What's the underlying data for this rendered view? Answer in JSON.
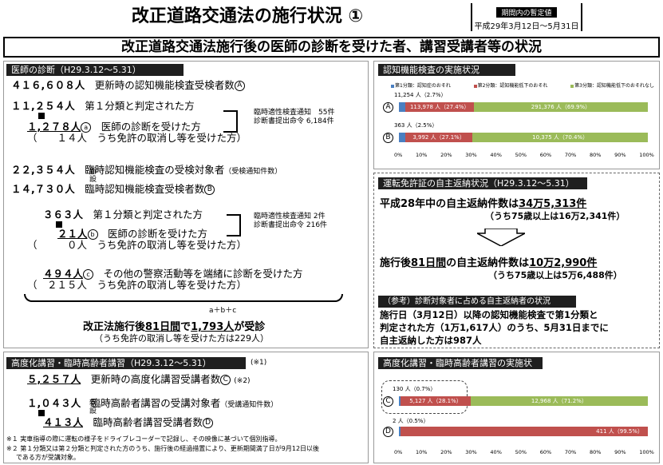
{
  "title": "改正道路交通法の施行状況 ①",
  "period": {
    "tag": "期間内の暫定値",
    "range": "平成29年3月12日～5月31日"
  },
  "banner": "改正道路交通法施行後の医師の診断を受けた者、講習受講者等の状況",
  "left": {
    "header": "医師の診断（H29.3.12～5.31）",
    "r1": {
      "num": "４１６,６０８人",
      "text": "更新時の認知機能検査受検者数",
      "mark": "A"
    },
    "r2": {
      "num": "１１,２５４人",
      "text": "第１分類と判定された方"
    },
    "r3": {
      "num": "１,２７８人",
      "sup": "a",
      "text": "医師の診断を受けた方"
    },
    "r4": {
      "num": "（　　１４人",
      "text": "うち免許の取消し等を受けた方）"
    },
    "br1": {
      "l1": "臨時適性検査通知　55件",
      "l2": "診断書提出命令 6,184件"
    },
    "r5": {
      "num": "２２,３５４人",
      "text": "臨時認知機能検査の受検対象者",
      "note": "（受検通知件数）"
    },
    "shinsetsu": "新設",
    "r6": {
      "num": "１４,７３０人",
      "text": "臨時認知機能検査受検者数",
      "mark": "B"
    },
    "r7": {
      "num": "３６３人",
      "text": "第１分類と判定された方"
    },
    "r8": {
      "num": "２１人",
      "sup": "b",
      "text": "医師の診断を受けた方"
    },
    "r9": {
      "num": "（　　　０人",
      "text": "うち免許の取消し等を受けた方）"
    },
    "br2": {
      "l1": "臨時適性検査通知 2件",
      "l2": "診断書提出命令 216件"
    },
    "r10": {
      "num": "４９４人",
      "sup": "c",
      "text": "その他の警察活動等を端緒に診断を受けた方"
    },
    "r11": {
      "num": "（　２１５人",
      "text": "うち免許の取消し等を受けた方）"
    },
    "sum_marks": "a＋b＋c",
    "sum_line_a": "改正法施行後",
    "sum_line_b": "81日間",
    "sum_line_c": "で",
    "sum_line_d": "1,793人",
    "sum_line_e": "が受診",
    "sum_line2": "（うち免許の取消し等を受けた方は229人）"
  },
  "lecture": {
    "header": "高度化講習・臨時高齢者講習（H29.3.12～5.31）",
    "header_note": "(※1)",
    "r1": {
      "num": "５,２５７人",
      "text": "更新時の高度化講習受講者数",
      "mark": "C",
      "note": "(※2)"
    },
    "r2": {
      "num": "１,０４３人",
      "text": "臨時高齢者講習の受講対象者",
      "note": "（受講通知件数）"
    },
    "shinsetsu": "新設",
    "r3": {
      "num": "４１３人",
      "text": "臨時高齢者講習受講者数",
      "mark": "D"
    },
    "note1": "※１ 実車指導の際に運転の様子をドライブレコーダーで記録し、その映像に基づいて個別指導。",
    "note2a": "※２ 第１分類又は第２分類と判定された方のうち、施行後の経過措置により、更新期間満了日が9月12日以後",
    "note2b": "である方が受講対象。"
  },
  "rightTop": {
    "header": "認知機能検査の実施状況",
    "legend": [
      "第1分類：認知症のおそれ",
      "第2分類：認知機能低下のおそれ",
      "第3分類：認知機能低下のおそれなし"
    ],
    "colors": [
      "#4a7fc1",
      "#c0504d",
      "#9bbb59"
    ],
    "rows": [
      {
        "mark": "A",
        "above": "11,254 人（2.7%）",
        "seg2": "113,978 人（27.4%）",
        "seg3": "291,376 人（69.9%）"
      },
      {
        "mark": "B",
        "above": "363 人（2.5%）",
        "seg2": "3,992 人（27.1%）",
        "seg3": "10,375 人（70.4%）"
      }
    ],
    "axis": [
      "0%",
      "10%",
      "20%",
      "30%",
      "40%",
      "50%",
      "60%",
      "70%",
      "80%",
      "90%",
      "100%"
    ]
  },
  "chart_data": [
    {
      "type": "bar",
      "stacked": true,
      "title": "認知機能検査の実施状況",
      "categories": [
        "A",
        "B"
      ],
      "series": [
        {
          "name": "第1分類：認知症のおそれ",
          "values": [
            2.7,
            2.5
          ]
        },
        {
          "name": "第2分類：認知機能低下のおそれ",
          "values": [
            27.4,
            27.1
          ]
        },
        {
          "name": "第3分類：認知機能低下のおそれなし",
          "values": [
            69.9,
            70.4
          ]
        }
      ],
      "xlim": [
        0,
        100
      ]
    },
    {
      "type": "bar",
      "stacked": true,
      "title": "高度化講習・臨時高齢者講習の実施状況",
      "categories": [
        "C",
        "D"
      ],
      "series": [
        {
          "values": [
            0.7,
            0.5
          ]
        },
        {
          "values": [
            28.1,
            99.5
          ]
        },
        {
          "values": [
            71.2,
            0
          ]
        }
      ],
      "xlim": [
        0,
        100
      ]
    }
  ],
  "rightMid": {
    "header": "運転免許証の自主返納状況（H29.3.12～5.31）",
    "l1a": "平成28年中の自主返納件数は",
    "l1b": "34万5,313件",
    "l2": "（うち75歳以上は16万2,341件）",
    "l3a": "施行後",
    "l3b": "81日間",
    "l3c": "の自主返納件数は",
    "l3d": "10万2,990件",
    "l4": "（うち75歳以上は5万6,488件）",
    "sub_header": "（参考）診断対象者に占める自主返納者の状況",
    "p1": "施行日（3月12日）以降の認知機能検査で第1分類と",
    "p2": "判定された方（1万1,617人）のうち、5月31日までに",
    "p3": "自主返納した方は987人"
  },
  "rightBot": {
    "header": "高度化講習・臨時高齢者講習の実施状況",
    "rows": [
      {
        "mark": "C",
        "above": "130 人（0.7%）",
        "seg2": "5,127 人（28.1%）",
        "seg3": "12,968 人（71.2%）"
      },
      {
        "mark": "D",
        "above": "2 人（0.5%）",
        "seg2": "411 人（99.5%）",
        "seg3": ""
      }
    ]
  }
}
